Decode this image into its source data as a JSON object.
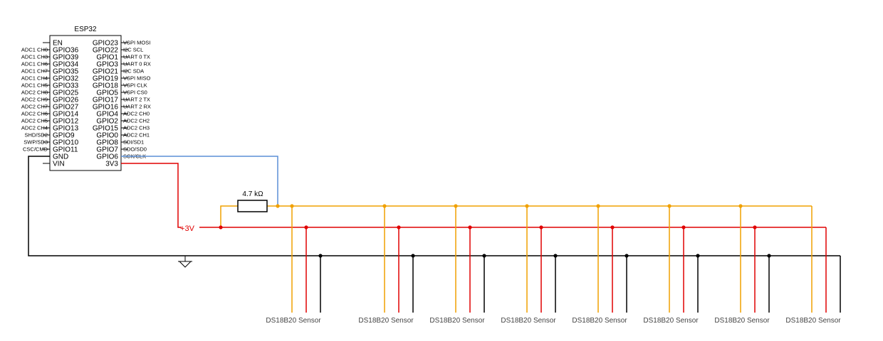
{
  "chip": {
    "title": "ESP32",
    "left_pins": [
      "EN",
      "GPIO36",
      "GPIO39",
      "GPIO34",
      "GPIO35",
      "GPIO32",
      "GPIO33",
      "GPIO25",
      "GPIO26",
      "GPIO27",
      "GPIO14",
      "GPIO12",
      "GPIO13",
      "GPIO9",
      "GPIO10",
      "GPIO11",
      "GND",
      "VIN"
    ],
    "left_funcs": [
      "",
      "ADC1 CH0",
      "ADC1 CH3",
      "ADC1 CH6",
      "ADC1 CH7",
      "ADC1 CH4",
      "ADC1 CH5",
      "ADC2 CH8",
      "ADC2 CH9",
      "ADC2 CH7",
      "ADC2 CH6",
      "ADC2 CH5",
      "ADC2 CH4",
      "SHD/SD2",
      "SWP/SD3",
      "CSC/CMD",
      "",
      ""
    ],
    "right_pins": [
      "GPIO23",
      "GPIO22",
      "GPIO1",
      "GPIO3",
      "GPIO21",
      "GPIO19",
      "GPIO18",
      "GPIO5",
      "GPIO17",
      "GPIO16",
      "GPIO4",
      "GPIO2",
      "GPIO15",
      "GPIO0",
      "GPIO8",
      "GPIO7",
      "GPIO6",
      "3V3"
    ],
    "right_funcs": [
      "VSPI MOSI",
      "I2C SCL",
      "UART 0 TX",
      "UART 0 RX",
      "I2C SDA",
      "VSPI MISO",
      "VSPI CLK",
      "VSPI CS0",
      "UART 2 TX",
      "UART 2 RX",
      "ADC2 CH0",
      "ADC2 CH2",
      "ADC2 CH3",
      "ADC2 CH1",
      "SDI/SD1",
      "SDO/SD0",
      "SCK/CLK",
      ""
    ]
  },
  "resistor": {
    "label": "4.7 kΩ"
  },
  "power_label": "+3V",
  "sensor_label": "DS18B20 Sensor",
  "sensor_count": 8,
  "colors": {
    "data": "#f0a000",
    "power": "#e00000",
    "spi": "#5b8fd6",
    "ground": "#000000",
    "label": "#444444"
  }
}
